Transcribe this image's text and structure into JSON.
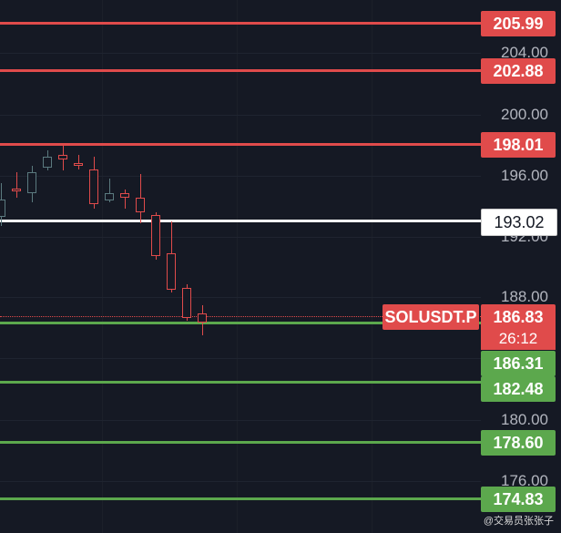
{
  "chart": {
    "symbol": "SOLUSDT.P",
    "countdown": "26:12",
    "colors": {
      "background": "#151924",
      "up": "#5b7a7f",
      "down": "#e04b4b",
      "resistance": "#e04b4b",
      "support": "#5ca84d",
      "pivot": "#ffffff"
    },
    "watermark": "@交易员张张子"
  },
  "axis": {
    "ticks": [
      "204.00",
      "200.00",
      "196.00",
      "192.00",
      "188.00",
      "180.00",
      "176.00"
    ]
  },
  "levels": [
    {
      "label": "205.99",
      "value": 205.99,
      "kind": "resistance"
    },
    {
      "label": "202.88",
      "value": 202.88,
      "kind": "resistance"
    },
    {
      "label": "198.01",
      "value": 198.01,
      "kind": "resistance"
    },
    {
      "label": "193.02",
      "value": 193.02,
      "kind": "pivot"
    },
    {
      "label": "186.31",
      "value": 186.31,
      "kind": "support"
    },
    {
      "label": "182.48",
      "value": 182.48,
      "kind": "support"
    },
    {
      "label": "178.60",
      "value": 178.6,
      "kind": "support"
    },
    {
      "label": "174.83",
      "value": 174.83,
      "kind": "support"
    }
  ],
  "current_price": {
    "label": "186.83",
    "value": 186.83
  },
  "chart_data": {
    "type": "candlestick",
    "ylim": [
      173.5,
      207.2
    ],
    "candles": [
      {
        "o": 193.5,
        "h": 195.6,
        "l": 192.9,
        "c": 194.6
      },
      {
        "o": 195.3,
        "h": 196.3,
        "l": 194.7,
        "c": 195.1
      },
      {
        "o": 195.0,
        "h": 196.7,
        "l": 194.4,
        "c": 196.3
      },
      {
        "o": 196.6,
        "h": 197.7,
        "l": 196.4,
        "c": 197.3
      },
      {
        "o": 197.4,
        "h": 198.0,
        "l": 196.4,
        "c": 197.1
      },
      {
        "o": 196.9,
        "h": 197.4,
        "l": 196.5,
        "c": 196.7
      },
      {
        "o": 196.5,
        "h": 197.3,
        "l": 194.0,
        "c": 194.3
      },
      {
        "o": 194.5,
        "h": 195.9,
        "l": 194.4,
        "c": 195.0
      },
      {
        "o": 195.0,
        "h": 195.2,
        "l": 194.0,
        "c": 194.7
      },
      {
        "o": 194.7,
        "h": 196.2,
        "l": 193.1,
        "c": 193.8
      },
      {
        "o": 193.6,
        "h": 193.8,
        "l": 190.8,
        "c": 191.0
      },
      {
        "o": 191.2,
        "h": 193.2,
        "l": 188.7,
        "c": 188.9
      },
      {
        "o": 189.0,
        "h": 189.2,
        "l": 186.9,
        "c": 187.1
      },
      {
        "o": 187.4,
        "h": 187.9,
        "l": 186.0,
        "c": 186.8
      }
    ]
  }
}
